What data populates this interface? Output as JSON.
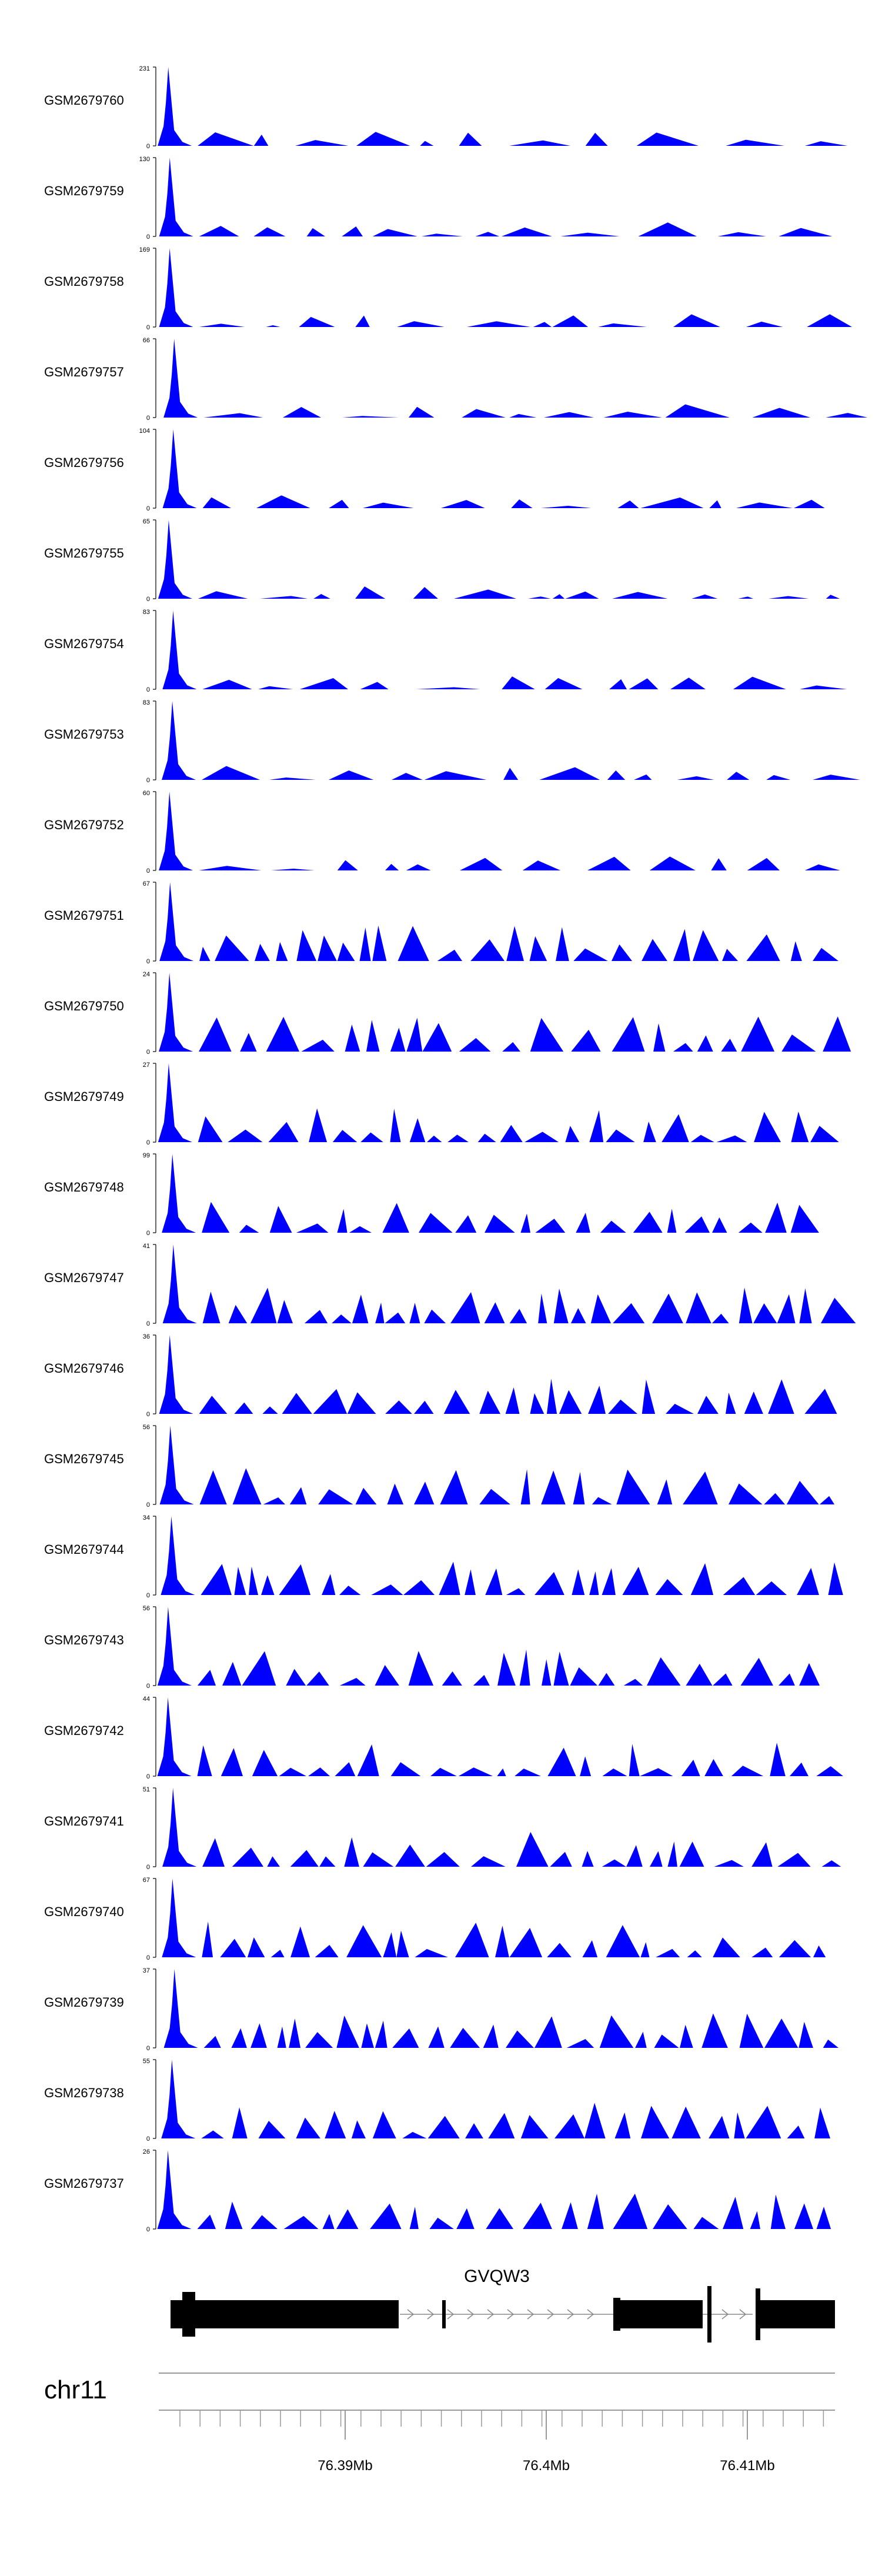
{
  "colors": {
    "signal": "#0000FF",
    "axis": "#000000",
    "gene": "#000000",
    "intron": "#888888",
    "axis_line": "#999999"
  },
  "chart_data": {
    "type": "area",
    "chromosome": "chr11",
    "gene": {
      "name": "GVQW3"
    },
    "genome_axis": {
      "ticks": [
        {
          "position_mb": 76.39,
          "label": "76.39Mb"
        },
        {
          "position_mb": 76.4,
          "label": "76.4Mb"
        },
        {
          "position_mb": 76.41,
          "label": "76.41Mb"
        }
      ]
    },
    "tracks": [
      {
        "name": "GSM2679760",
        "ymax": 231,
        "ymin": 0
      },
      {
        "name": "GSM2679759",
        "ymax": 130,
        "ymin": 0
      },
      {
        "name": "GSM2679758",
        "ymax": 169,
        "ymin": 0
      },
      {
        "name": "GSM2679757",
        "ymax": 66,
        "ymin": 0
      },
      {
        "name": "GSM2679756",
        "ymax": 104,
        "ymin": 0
      },
      {
        "name": "GSM2679755",
        "ymax": 65,
        "ymin": 0
      },
      {
        "name": "GSM2679754",
        "ymax": 83,
        "ymin": 0
      },
      {
        "name": "GSM2679753",
        "ymax": 83,
        "ymin": 0
      },
      {
        "name": "GSM2679752",
        "ymax": 60,
        "ymin": 0
      },
      {
        "name": "GSM2679751",
        "ymax": 67,
        "ymin": 0
      },
      {
        "name": "GSM2679750",
        "ymax": 24,
        "ymin": 0
      },
      {
        "name": "GSM2679749",
        "ymax": 27,
        "ymin": 0
      },
      {
        "name": "GSM2679748",
        "ymax": 99,
        "ymin": 0
      },
      {
        "name": "GSM2679747",
        "ymax": 41,
        "ymin": 0
      },
      {
        "name": "GSM2679746",
        "ymax": 36,
        "ymin": 0
      },
      {
        "name": "GSM2679745",
        "ymax": 56,
        "ymin": 0
      },
      {
        "name": "GSM2679744",
        "ymax": 34,
        "ymin": 0
      },
      {
        "name": "GSM2679743",
        "ymax": 56,
        "ymin": 0
      },
      {
        "name": "GSM2679742",
        "ymax": 44,
        "ymin": 0
      },
      {
        "name": "GSM2679741",
        "ymax": 51,
        "ymin": 0
      },
      {
        "name": "GSM2679740",
        "ymax": 67,
        "ymin": 0
      },
      {
        "name": "GSM2679739",
        "ymax": 37,
        "ymin": 0
      },
      {
        "name": "GSM2679738",
        "ymax": 55,
        "ymin": 0
      },
      {
        "name": "GSM2679737",
        "ymax": 26,
        "ymin": 0
      }
    ]
  }
}
